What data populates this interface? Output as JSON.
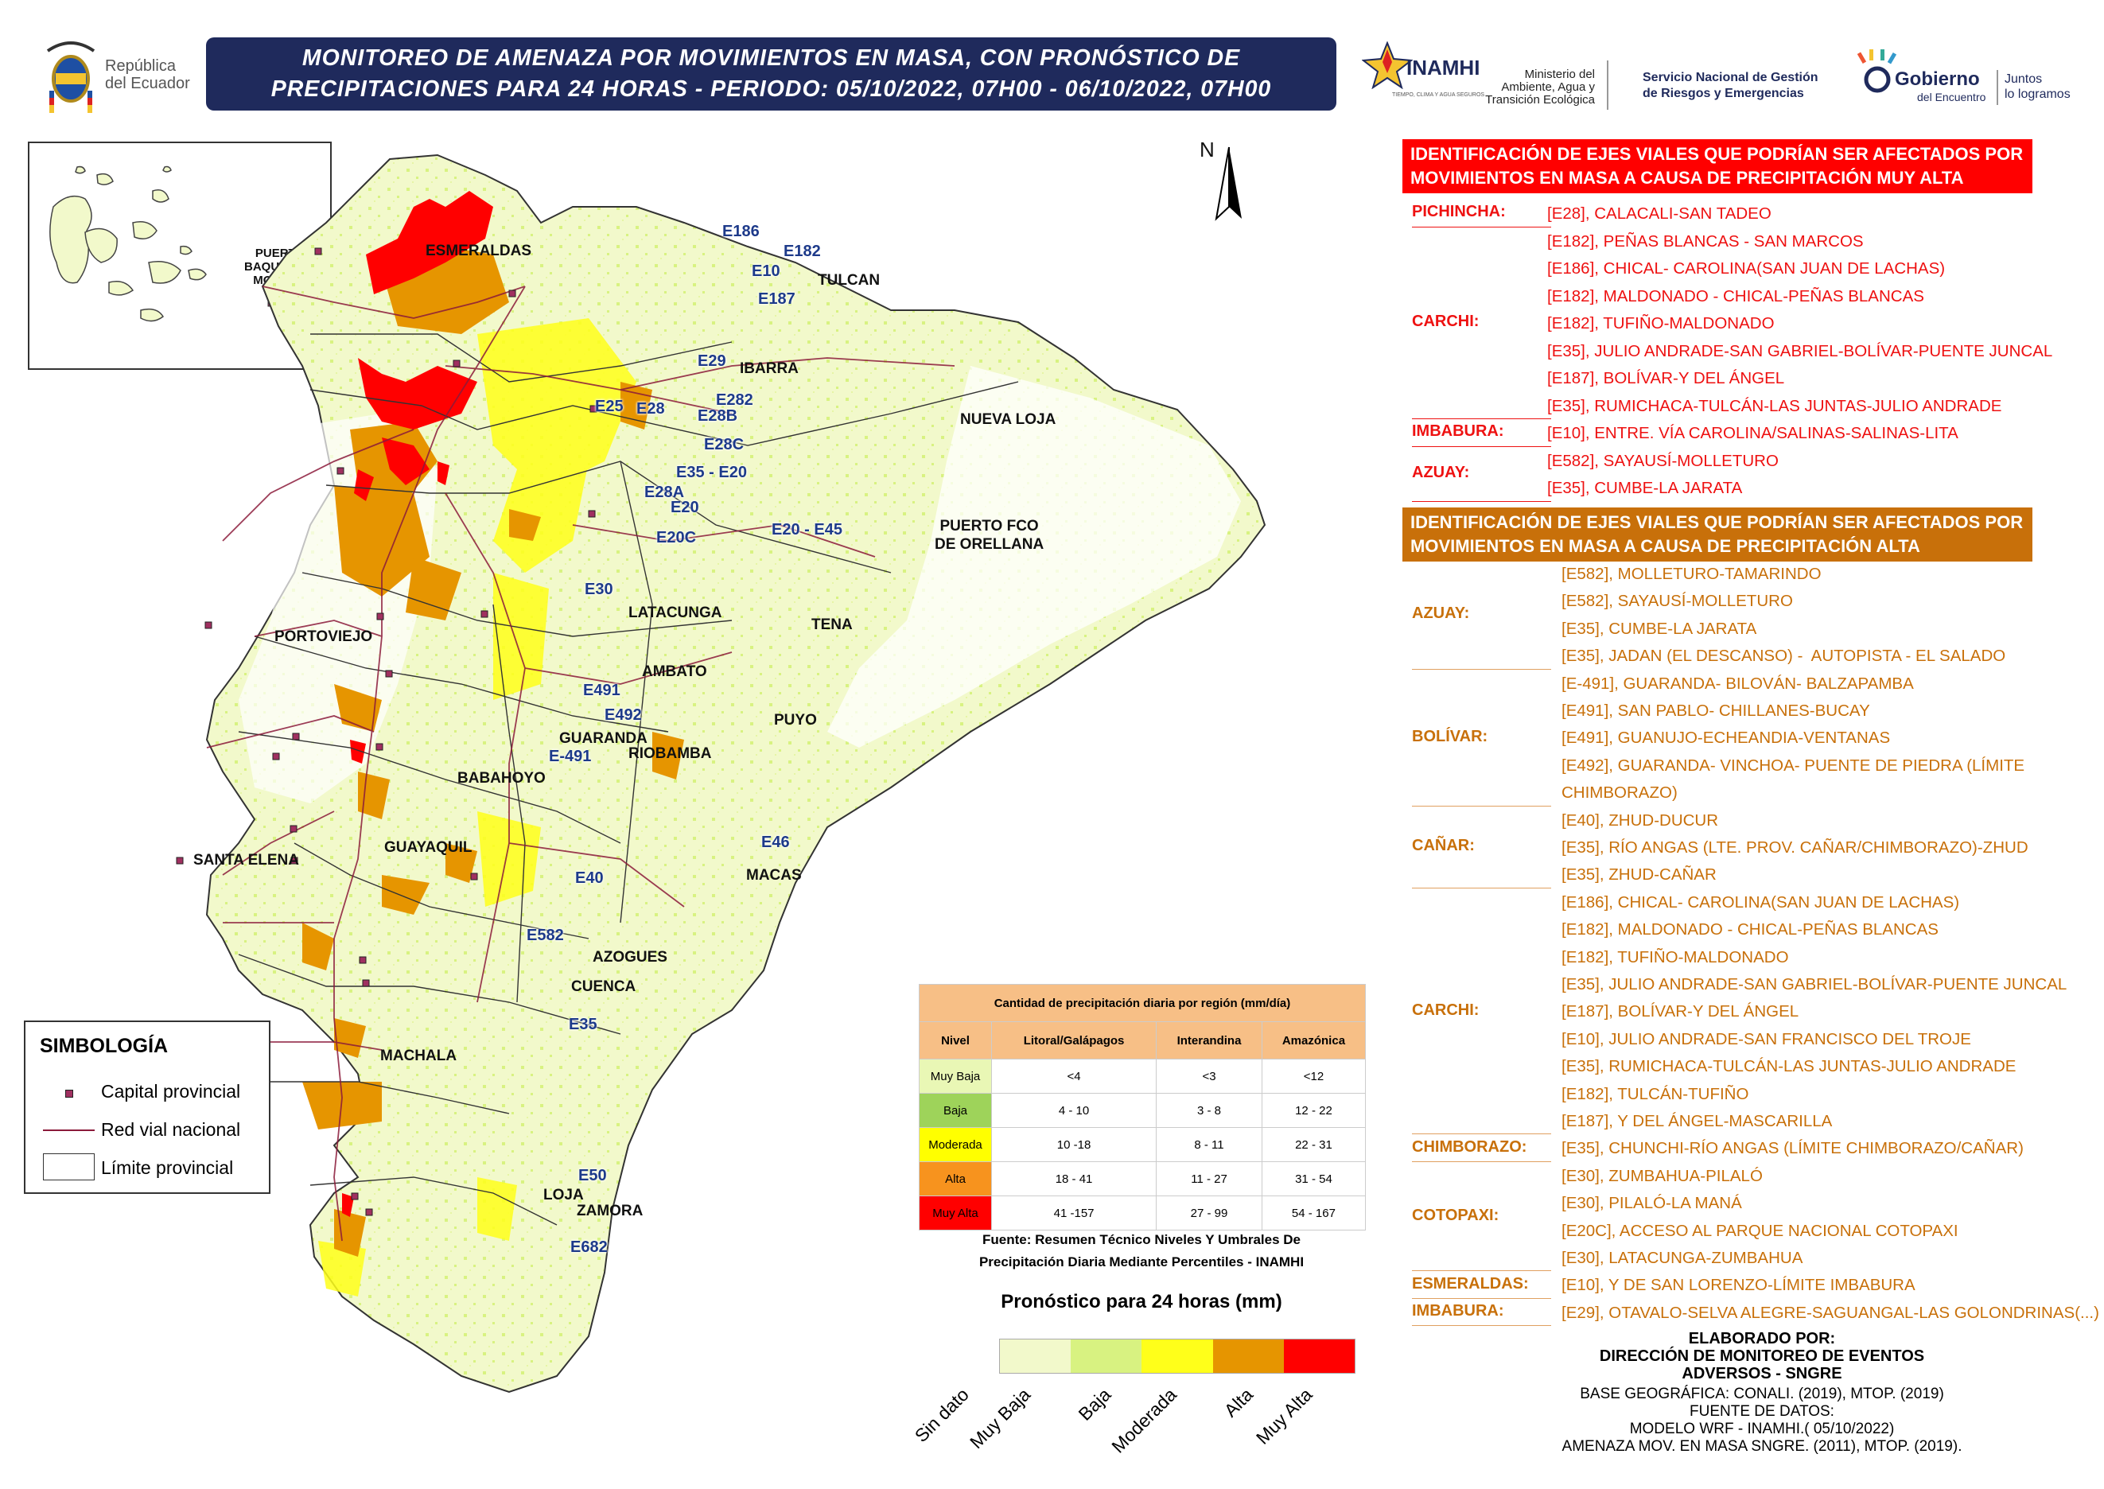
{
  "header": {
    "title_line1": "MONITOREO DE AMENAZA POR MOVIMIENTOS EN MASA, CON PRONÓSTICO DE",
    "title_line2": "PRECIPITACIONES PARA 24 HORAS - PERIODO: 05/10/2022, 07H00 - 06/10/2022, 07H00",
    "republica": "República\ndel Ecuador",
    "inamhi": "INAMHI",
    "inamhi_sub": "TIEMPO, CLIMA Y AGUA SEGUROS",
    "ministerio": "Ministerio del\nAmbiente, Agua y\nTransición Ecológica",
    "sngre": "Servicio Nacional de Gestión\nde Riesgos y Emergencias",
    "gobierno": "Gobierno",
    "gobierno_sub": "del Encuentro",
    "juntos": "Juntos\nlo logramos"
  },
  "map": {
    "north": "N",
    "inset_label": "PUERTO\nBAQUERIZO\nMORENO",
    "cities": [
      "ESMERALDAS",
      "TULCAN",
      "IBARRA",
      "NUEVA LOJA",
      "PUERTO FCO\nDE ORELLANA",
      "LATACUNGA",
      "TENA",
      "PORTOVIEJO",
      "AMBATO",
      "PUYO",
      "GUARANDA",
      "RIOBAMBA",
      "BABAHOYO",
      "SANTA ELENA",
      "GUAYAQUIL",
      "MACAS",
      "AZOGUES",
      "CUENCA",
      "MACHALA",
      "LOJA",
      "ZAMORA"
    ],
    "roads": [
      "E186",
      "E182",
      "E10",
      "E187",
      "E29",
      "E25",
      "E28",
      "E282",
      "E28B",
      "E28C",
      "E35 - E20",
      "E28A",
      "E20",
      "E20C",
      "E20 - E45",
      "E30",
      "E491",
      "E492",
      "E-491",
      "E46",
      "E40",
      "E582",
      "E35",
      "E50",
      "E682"
    ]
  },
  "legend": {
    "title": "SIMBOLOGÍA",
    "items": [
      "Capital provincial",
      "Red vial nacional",
      "Límite provincial"
    ]
  },
  "precip_table": {
    "title": "Cantidad de precipitación diaria por región (mm/día)",
    "columns": [
      "Nivel",
      "Litoral/Galápagos",
      "Interandina",
      "Amazónica"
    ],
    "rows": [
      {
        "nivel": "Muy Baja",
        "litoral": "<4",
        "interandina": "<3",
        "amazonica": "<12",
        "color": "#e9f7b5"
      },
      {
        "nivel": "Baja",
        "litoral": "4 - 10",
        "interandina": "3 - 8",
        "amazonica": "12 - 22",
        "color": "#9ed35a"
      },
      {
        "nivel": "Moderada",
        "litoral": "10 -18",
        "interandina": "8 - 11",
        "amazonica": "22 - 31",
        "color": "#ffff00"
      },
      {
        "nivel": "Alta",
        "litoral": "18 - 41",
        "interandina": "11 - 27",
        "amazonica": "31 - 54",
        "color": "#f7931e"
      },
      {
        "nivel": "Muy Alta",
        "litoral": "41 -157",
        "interandina": "27 - 99",
        "amazonica": "54 - 167",
        "color": "#ff0000"
      }
    ],
    "source_line1": "Fuente: Resumen Técnico Niveles Y Umbrales De",
    "source_line2": "Precipitación Diaria Mediante Percentiles - INAMHI"
  },
  "forecast_scale": {
    "title": "Pronóstico para 24 horas (mm)",
    "labels": [
      "Sin dato",
      "Muy Baja",
      "Baja",
      "Moderada",
      "Alta",
      "Muy Alta"
    ],
    "colors": [
      "#f2f9cb",
      "#d8f281",
      "#ffff1a",
      "#e69500",
      "#ff0000"
    ]
  },
  "muy_alta_panel": {
    "banner_line1": "IDENTIFICACIÓN DE EJES VIALES QUE PODRÍAN SER AFECTADOS POR",
    "banner_line2": "MOVIMIENTOS EN MASA A CAUSA DE  PRECIPITACIÓN MUY ALTA",
    "color": "#ff0000",
    "groups": [
      {
        "province": "PICHINCHA:",
        "routes": [
          "[E28], CALACALI-SAN TADEO"
        ]
      },
      {
        "province": "CARCHI:",
        "routes": [
          "[E182], PEÑAS BLANCAS - SAN MARCOS",
          "[E186], CHICAL- CAROLINA(SAN JUAN DE LACHAS)",
          "[E182], MALDONADO - CHICAL-PEÑAS BLANCAS",
          "[E182], TUFIÑO-MALDONADO",
          "[E35], JULIO ANDRADE-SAN GABRIEL-BOLÍVAR-PUENTE JUNCAL",
          "[E187], BOLÍVAR-Y DEL ÁNGEL",
          "[E35], RUMICHACA-TULCÁN-LAS JUNTAS-JULIO ANDRADE"
        ]
      },
      {
        "province": "IMBABURA:",
        "routes": [
          "[E10], ENTRE. VÍA CAROLINA/SALINAS-SALINAS-LITA"
        ]
      },
      {
        "province": "AZUAY:",
        "routes": [
          "[E582], SAYAUSÍ-MOLLETURO",
          "[E35], CUMBE-LA JARATA"
        ]
      }
    ]
  },
  "alta_panel": {
    "banner_line1": "IDENTIFICACIÓN DE EJES VIALES QUE PODRÍAN SER AFECTADOS POR",
    "banner_line2": "MOVIMIENTOS EN MASA A CAUSA DE  PRECIPITACIÓN ALTA",
    "color": "#c8700a",
    "groups": [
      {
        "province": "AZUAY:",
        "routes": [
          "[E582], MOLLETURO-TAMARINDO",
          "[E582], SAYAUSÍ-MOLLETURO",
          "[E35], CUMBE-LA JARATA",
          "[E35], JADAN (EL DESCANSO) -  AUTOPISTA - EL SALADO"
        ]
      },
      {
        "province": "BOLÍVAR:",
        "routes": [
          "[E-491], GUARANDA- BILOVÁN- BALZAPAMBA",
          "[E491], SAN PABLO- CHILLANES-BUCAY",
          "[E491], GUANUJO-ECHEANDIA-VENTANAS",
          "[E492], GUARANDA- VINCHOA- PUENTE DE PIEDRA (LÍMITE\nCHIMBORAZO)"
        ]
      },
      {
        "province": "CAÑAR:",
        "routes": [
          "[E40], ZHUD-DUCUR",
          "[E35], RÍO ANGAS (LTE. PROV. CAÑAR/CHIMBORAZO)-ZHUD",
          "[E35], ZHUD-CAÑAR"
        ]
      },
      {
        "province": "CARCHI:",
        "routes": [
          "[E186], CHICAL- CAROLINA(SAN JUAN DE LACHAS)",
          "[E182], MALDONADO - CHICAL-PEÑAS BLANCAS",
          "[E182], TUFIÑO-MALDONADO",
          "[E35], JULIO ANDRADE-SAN GABRIEL-BOLÍVAR-PUENTE JUNCAL",
          "[E187], BOLÍVAR-Y DEL ÁNGEL",
          "[E10], JULIO ANDRADE-SAN FRANCISCO DEL TROJE",
          "[E35], RUMICHACA-TULCÁN-LAS JUNTAS-JULIO ANDRADE",
          "[E182], TULCÁN-TUFIÑO",
          "[E187], Y DEL ÁNGEL-MASCARILLA"
        ]
      },
      {
        "province": "CHIMBORAZO:",
        "routes": [
          "[E35], CHUNCHI-RÍO ANGAS (LÍMITE CHIMBORAZO/CAÑAR)"
        ]
      },
      {
        "province": "COTOPAXI:",
        "routes": [
          "[E30], ZUMBAHUA-PILALÓ",
          "[E30], PILALÓ-LA MANÁ",
          "[E20C], ACCESO AL PARQUE NACIONAL COTOPAXI",
          "[E30], LATACUNGA-ZUMBAHUA"
        ]
      },
      {
        "province": "ESMERALDAS:",
        "routes": [
          "[E10], Y DE SAN LORENZO-LÍMITE IMBABURA"
        ]
      },
      {
        "province": "IMBABURA:",
        "routes": [
          "[E29], OTAVALO-SELVA ALEGRE-SAGUANGAL-LAS GOLONDRINAS(...)"
        ]
      }
    ]
  },
  "credits": {
    "l1": "ELABORADO POR:",
    "l2": "DIRECCIÓN DE MONITOREO DE EVENTOS",
    "l3": "ADVERSOS - SNGRE",
    "l4": "BASE GEOGRÁFICA: CONALI. (2019), MTOP. (2019)",
    "l5": "FUENTE DE DATOS:",
    "l6": "MODELO WRF - INAMHI.( 05/10/2022)",
    "l7": "AMENAZA MOV. EN MASA SNGRE. (2011), MTOP. (2019)."
  }
}
